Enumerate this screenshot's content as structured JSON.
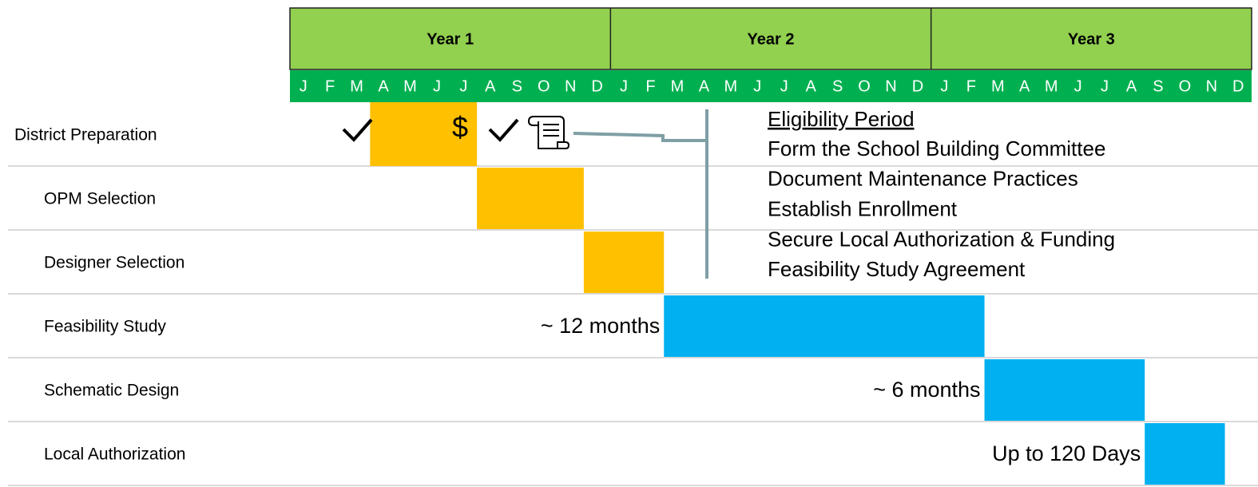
{
  "chart_data": {
    "type": "gantt",
    "years": [
      "Year 1",
      "Year 2",
      "Year 3"
    ],
    "months": [
      "J",
      "F",
      "M",
      "A",
      "M",
      "J",
      "J",
      "A",
      "S",
      "O",
      "N",
      "D",
      "J",
      "F",
      "M",
      "A",
      "M",
      "J",
      "J",
      "A",
      "S",
      "O",
      "N",
      "D",
      "J",
      "F",
      "M",
      "A",
      "M",
      "J",
      "J",
      "A",
      "S",
      "O",
      "N",
      "D"
    ],
    "xlim": [
      0,
      36
    ],
    "categories": [
      "District Preparation",
      "OPM Selection",
      "Designer Selection",
      "Feasibility Study",
      "Schematic Design",
      "Local Authorization"
    ],
    "bars": [
      {
        "start": 3,
        "end": 7,
        "color": "#ffc000"
      },
      {
        "start": 7,
        "end": 11,
        "color": "#ffc000"
      },
      {
        "start": 11,
        "end": 14,
        "color": "#ffc000"
      },
      {
        "start": 14,
        "end": 26,
        "color": "#00b0f0",
        "label": "~ 12 months"
      },
      {
        "start": 26,
        "end": 32,
        "color": "#00b0f0",
        "label": "~ 6 months"
      },
      {
        "start": 32,
        "end": 35,
        "color": "#00b0f0",
        "label": "Up to 120 Days"
      }
    ],
    "funding_symbol": "$",
    "notes": {
      "title": "Eligibility Period",
      "items": [
        "Form the School Building Committee",
        "Document Maintenance Practices",
        "Establish Enrollment",
        "Secure Local Authorization & Funding",
        "Feasibility Study Agreement"
      ]
    }
  }
}
